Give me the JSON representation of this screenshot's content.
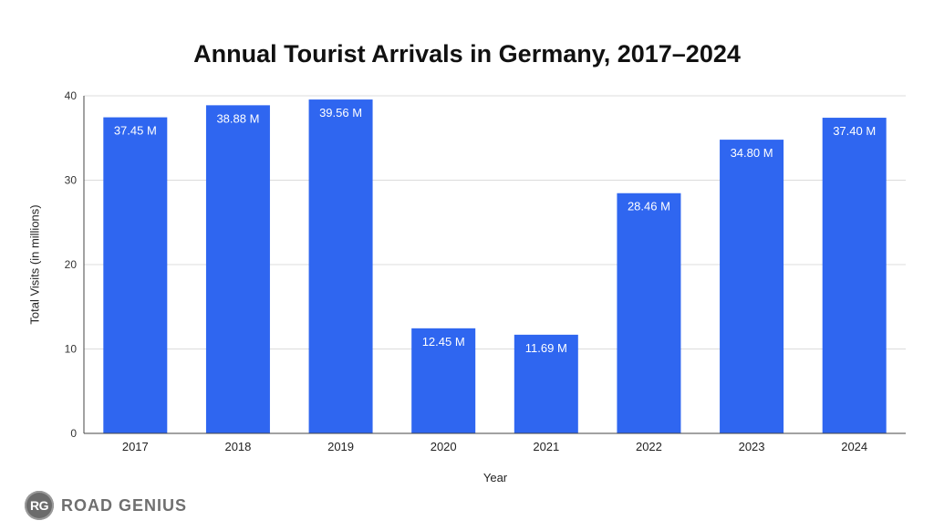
{
  "chart_data": {
    "type": "bar",
    "title": "Annual Tourist Arrivals in Germany, 2017–2024",
    "xlabel": "Year",
    "ylabel": "Total Visits (in millions)",
    "categories": [
      "2017",
      "2018",
      "2019",
      "2020",
      "2021",
      "2022",
      "2023",
      "2024"
    ],
    "values": [
      37.45,
      38.88,
      39.56,
      12.45,
      11.69,
      28.46,
      34.8,
      37.4
    ],
    "data_labels": [
      "37.45 M",
      "38.88 M",
      "39.56 M",
      "12.45 M",
      "11.69 M",
      "28.46 M",
      "34.80 M",
      "37.40 M"
    ],
    "ylim": [
      0,
      40
    ],
    "yticks": [
      "0",
      "10",
      "20",
      "30",
      "40"
    ],
    "grid": true,
    "bar_color": "#2f66f0",
    "label_color": "#ffffff"
  },
  "brand": {
    "logo_text": "RG",
    "name": "ROAD GENIUS"
  }
}
